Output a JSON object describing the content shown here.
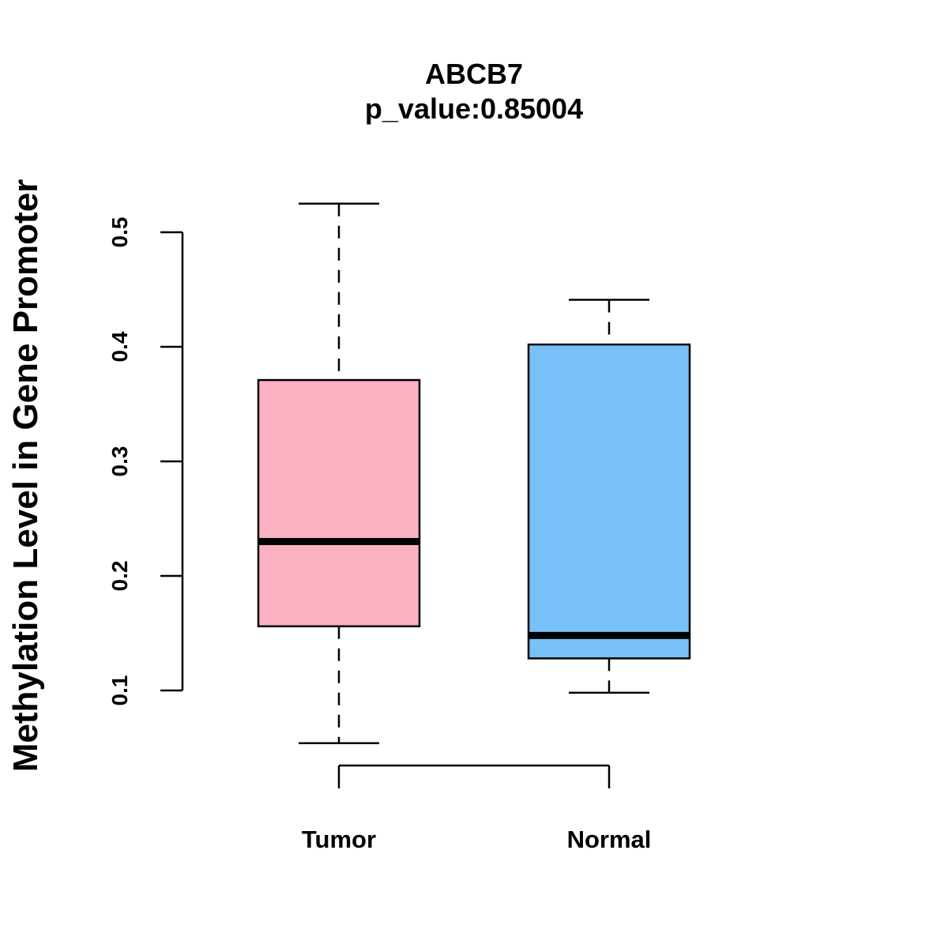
{
  "chart_data": {
    "type": "boxplot",
    "title": "ABCB7",
    "subtitle": "p_value:0.85004",
    "xlabel": "",
    "ylabel": "Methylation Level in Gene Promoter",
    "ylim": [
      0.1,
      0.5
    ],
    "yticks": [
      "0.1",
      "0.2",
      "0.3",
      "0.4",
      "0.5"
    ],
    "categories": [
      "Tumor",
      "Normal"
    ],
    "boxes": [
      {
        "name": "Tumor",
        "min": 0.054,
        "q1": 0.156,
        "median": 0.23,
        "q3": 0.371,
        "max": 0.525,
        "color": "#FBB1C2"
      },
      {
        "name": "Normal",
        "min": 0.098,
        "q1": 0.128,
        "median": 0.148,
        "q3": 0.402,
        "max": 0.441,
        "color": "#77C1F8"
      }
    ],
    "grid": false,
    "legend": "none"
  }
}
